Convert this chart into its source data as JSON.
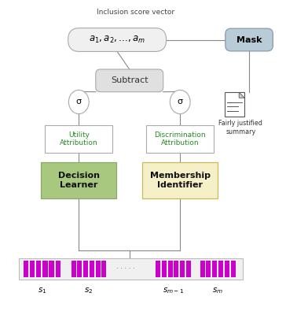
{
  "title": "Inclusion score vector",
  "bg_color": "#ffffff",
  "inclusion_vector_text": "$\\mathit{a}_1 , \\mathit{a}_2 , \\ldots , \\mathit{a}_m$",
  "mask_text": "Mask",
  "subtract_text": "Subtract",
  "sigma_text": "σ",
  "utility_text": "Utility\nAttribution",
  "discrimination_text": "Discrimination\nAttribution",
  "decision_text": "Decision\nLearner",
  "membership_text": "Membership\nIdentifier",
  "justified_line1": "Fairly justified",
  "justified_line2": "summary",
  "inclusion_box_color": "#f0f0f0",
  "mask_box_color": "#b8ccd8",
  "subtract_box_color": "#e0e0e0",
  "utility_box_color": "#ffffff",
  "discrimination_box_color": "#ffffff",
  "decision_box_color": "#a8c880",
  "membership_box_color": "#f5f0c8",
  "bar_bg_color": "#f0f0f0",
  "bar_segment_color": "#cc00cc",
  "line_color": "#888888",
  "green_text_color": "#228B22",
  "s_labels": [
    "$s_1$",
    "$s_2$",
    "$s_{m-1}$",
    "$s_m$"
  ]
}
